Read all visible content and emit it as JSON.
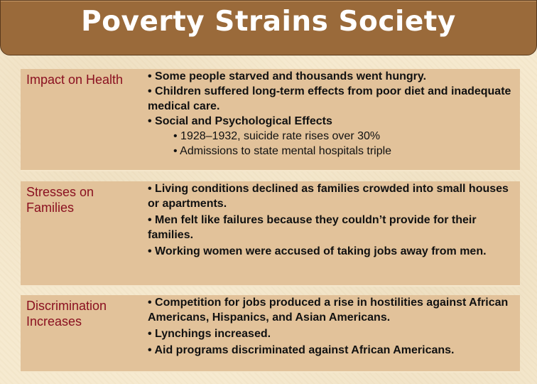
{
  "title": "Poverty Strains Society",
  "rows": [
    {
      "label": "Impact on Health",
      "bullets": [
        "• Some people starved and thousands went hungry.",
        "• Children suffered long-term effects from poor diet and inadequate medical care.",
        "• Social and Psychological Effects"
      ],
      "sub_bullets": [
        "• 1928–1932, suicide rate rises over 30%",
        "• Admissions to state mental hospitals triple"
      ]
    },
    {
      "label": "Stresses on Families",
      "bullets": [
        "• Living conditions declined as families crowded into small houses or apartments.",
        "• Men felt like failures because they couldn’t provide for their families.",
        "• Working women were accused of taking jobs away from men."
      ]
    },
    {
      "label": "Discrimination Increases",
      "bullets": [
        "• Competition for jobs produced a rise in hostilities against African Americans, Hispanics, and Asian Americans.",
        "• Lynchings increased.",
        "• Aid programs discriminated against African Americans."
      ]
    }
  ]
}
